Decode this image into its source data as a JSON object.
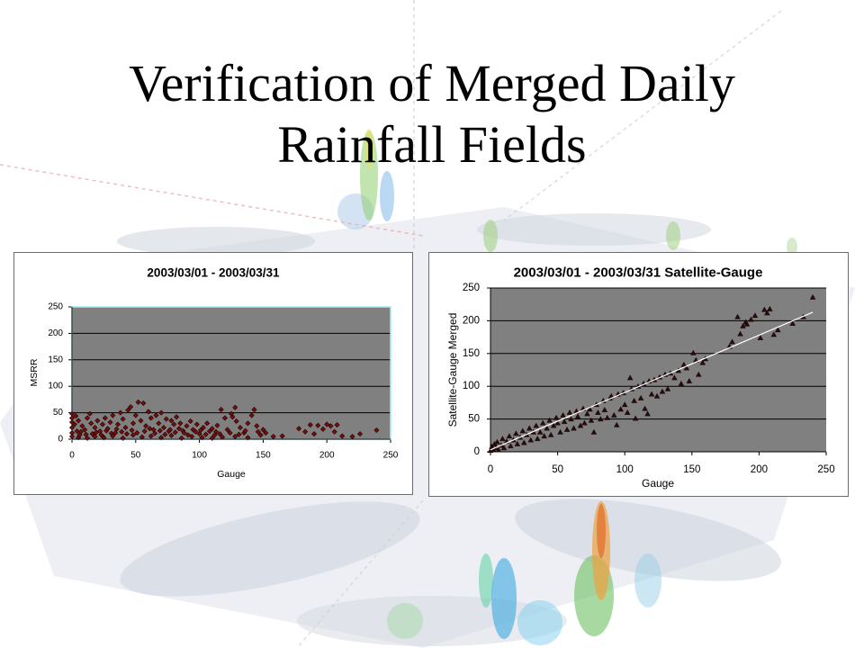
{
  "slide": {
    "title_line1": "Verification of Merged Daily",
    "title_line2": "Rainfall Fields"
  },
  "chart_data": [
    {
      "type": "scatter",
      "title": "2003/03/01 - 2003/03/31",
      "xlabel": "Gauge",
      "ylabel": "MSRR",
      "xlim": [
        0,
        250
      ],
      "ylim": [
        0,
        250
      ],
      "xticks": [
        0,
        50,
        100,
        150,
        200,
        250
      ],
      "yticks": [
        0,
        50,
        100,
        150,
        200,
        250
      ],
      "grid": true,
      "marker": "diamond",
      "marker_color": "#7b0c0c",
      "plot_bg": "#808080",
      "plot_border": "#a6eef0",
      "points": [
        [
          0,
          48
        ],
        [
          0,
          40
        ],
        [
          0,
          32
        ],
        [
          0,
          22
        ],
        [
          0,
          12
        ],
        [
          0,
          5
        ],
        [
          2,
          28
        ],
        [
          3,
          44
        ],
        [
          4,
          15
        ],
        [
          5,
          35
        ],
        [
          5,
          3
        ],
        [
          6,
          8
        ],
        [
          7,
          14
        ],
        [
          8,
          25
        ],
        [
          10,
          18
        ],
        [
          11,
          9
        ],
        [
          12,
          40
        ],
        [
          12,
          2
        ],
        [
          14,
          48
        ],
        [
          15,
          30
        ],
        [
          16,
          10
        ],
        [
          18,
          22
        ],
        [
          18,
          5
        ],
        [
          19,
          13
        ],
        [
          20,
          35
        ],
        [
          22,
          15
        ],
        [
          23,
          8
        ],
        [
          24,
          28
        ],
        [
          25,
          3
        ],
        [
          26,
          40
        ],
        [
          27,
          16
        ],
        [
          28,
          20
        ],
        [
          30,
          32
        ],
        [
          31,
          11
        ],
        [
          32,
          45
        ],
        [
          32,
          6
        ],
        [
          34,
          12
        ],
        [
          35,
          19
        ],
        [
          36,
          28
        ],
        [
          38,
          50
        ],
        [
          39,
          14
        ],
        [
          40,
          38
        ],
        [
          40,
          2
        ],
        [
          42,
          22
        ],
        [
          43,
          10
        ],
        [
          44,
          55
        ],
        [
          46,
          61
        ],
        [
          47,
          17
        ],
        [
          48,
          30
        ],
        [
          48,
          8
        ],
        [
          50,
          45
        ],
        [
          51,
          12
        ],
        [
          52,
          70
        ],
        [
          54,
          35
        ],
        [
          55,
          4
        ],
        [
          56,
          68
        ],
        [
          57,
          15
        ],
        [
          58,
          25
        ],
        [
          60,
          52
        ],
        [
          61,
          20
        ],
        [
          62,
          40
        ],
        [
          62,
          6
        ],
        [
          64,
          18
        ],
        [
          65,
          11
        ],
        [
          66,
          45
        ],
        [
          68,
          30
        ],
        [
          69,
          16
        ],
        [
          70,
          50
        ],
        [
          70,
          3
        ],
        [
          72,
          22
        ],
        [
          73,
          9
        ],
        [
          74,
          38
        ],
        [
          76,
          15
        ],
        [
          77,
          18
        ],
        [
          78,
          35
        ],
        [
          78,
          7
        ],
        [
          80,
          28
        ],
        [
          81,
          13
        ],
        [
          82,
          42
        ],
        [
          84,
          20
        ],
        [
          85,
          30
        ],
        [
          86,
          2
        ],
        [
          87,
          16
        ],
        [
          88,
          12
        ],
        [
          90,
          25
        ],
        [
          91,
          8
        ],
        [
          93,
          34
        ],
        [
          94,
          5
        ],
        [
          95,
          18
        ],
        [
          97,
          14
        ],
        [
          98,
          28
        ],
        [
          100,
          10
        ],
        [
          101,
          17
        ],
        [
          102,
          3
        ],
        [
          103,
          22
        ],
        [
          105,
          9
        ],
        [
          106,
          30
        ],
        [
          108,
          15
        ],
        [
          110,
          20
        ],
        [
          110,
          2
        ],
        [
          112,
          8
        ],
        [
          113,
          14
        ],
        [
          114,
          26
        ],
        [
          116,
          10
        ],
        [
          117,
          56
        ],
        [
          118,
          4
        ],
        [
          120,
          40
        ],
        [
          122,
          18
        ],
        [
          124,
          12
        ],
        [
          125,
          48
        ],
        [
          126,
          42
        ],
        [
          128,
          60
        ],
        [
          128,
          5
        ],
        [
          129,
          34
        ],
        [
          131,
          9
        ],
        [
          132,
          22
        ],
        [
          135,
          12
        ],
        [
          136,
          16
        ],
        [
          138,
          30
        ],
        [
          138,
          3
        ],
        [
          141,
          45
        ],
        [
          143,
          56
        ],
        [
          145,
          25
        ],
        [
          146,
          14
        ],
        [
          148,
          8
        ],
        [
          150,
          18
        ],
        [
          152,
          12
        ],
        [
          158,
          5
        ],
        [
          165,
          6
        ],
        [
          178,
          20
        ],
        [
          183,
          14
        ],
        [
          187,
          27
        ],
        [
          190,
          10
        ],
        [
          193,
          26
        ],
        [
          197,
          19
        ],
        [
          200,
          28
        ],
        [
          203,
          25
        ],
        [
          206,
          14
        ],
        [
          208,
          27
        ],
        [
          212,
          6
        ],
        [
          220,
          5
        ],
        [
          226,
          10
        ],
        [
          239,
          17
        ]
      ]
    },
    {
      "type": "scatter",
      "title": "2003/03/01 - 2003/03/31 Satellite-Gauge",
      "xlabel": "Gauge",
      "ylabel": "Satellite-Gauge Merged",
      "xlim": [
        0,
        250
      ],
      "ylim": [
        0,
        250
      ],
      "xticks": [
        0,
        50,
        100,
        150,
        200,
        250
      ],
      "yticks": [
        0,
        50,
        100,
        150,
        200,
        250
      ],
      "grid": true,
      "marker": "triangle",
      "marker_color": "#2a0a0a",
      "plot_bg": "#808080",
      "trendline": {
        "x": [
          0,
          240
        ],
        "y": [
          3,
          213
        ],
        "color": "#ffffff"
      },
      "points": [
        [
          0,
          2
        ],
        [
          1,
          8
        ],
        [
          2,
          4
        ],
        [
          3,
          12
        ],
        [
          4,
          6
        ],
        [
          5,
          15
        ],
        [
          6,
          3
        ],
        [
          8,
          10
        ],
        [
          9,
          20
        ],
        [
          10,
          6
        ],
        [
          12,
          16
        ],
        [
          14,
          24
        ],
        [
          15,
          9
        ],
        [
          17,
          18
        ],
        [
          19,
          28
        ],
        [
          20,
          12
        ],
        [
          22,
          22
        ],
        [
          24,
          32
        ],
        [
          25,
          14
        ],
        [
          27,
          26
        ],
        [
          29,
          36
        ],
        [
          30,
          18
        ],
        [
          32,
          30
        ],
        [
          34,
          40
        ],
        [
          35,
          20
        ],
        [
          37,
          30
        ],
        [
          39,
          44
        ],
        [
          40,
          24
        ],
        [
          42,
          36
        ],
        [
          44,
          48
        ],
        [
          45,
          26
        ],
        [
          47,
          40
        ],
        [
          49,
          52
        ],
        [
          50,
          44
        ],
        [
          52,
          30
        ],
        [
          54,
          56
        ],
        [
          55,
          46
        ],
        [
          57,
          34
        ],
        [
          59,
          60
        ],
        [
          60,
          50
        ],
        [
          62,
          36
        ],
        [
          64,
          62
        ],
        [
          65,
          54
        ],
        [
          67,
          40
        ],
        [
          69,
          66
        ],
        [
          70,
          44
        ],
        [
          72,
          58
        ],
        [
          74,
          65
        ],
        [
          75,
          48
        ],
        [
          77,
          30
        ],
        [
          79,
          72
        ],
        [
          80,
          60
        ],
        [
          82,
          50
        ],
        [
          84,
          78
        ],
        [
          85,
          64
        ],
        [
          87,
          52
        ],
        [
          89,
          82
        ],
        [
          90,
          85
        ],
        [
          92,
          56
        ],
        [
          94,
          41
        ],
        [
          95,
          88
        ],
        [
          97,
          65
        ],
        [
          99,
          90
        ],
        [
          100,
          72
        ],
        [
          102,
          60
        ],
        [
          104,
          113
        ],
        [
          105,
          96
        ],
        [
          107,
          78
        ],
        [
          108,
          51
        ],
        [
          110,
          100
        ],
        [
          112,
          82
        ],
        [
          114,
          104
        ],
        [
          115,
          66
        ],
        [
          117,
          58
        ],
        [
          118,
          108
        ],
        [
          120,
          88
        ],
        [
          122,
          110
        ],
        [
          124,
          85
        ],
        [
          126,
          114
        ],
        [
          128,
          92
        ],
        [
          130,
          118
        ],
        [
          132,
          96
        ],
        [
          134,
          120
        ],
        [
          137,
          113
        ],
        [
          140,
          124
        ],
        [
          142,
          104
        ],
        [
          144,
          133
        ],
        [
          146,
          128
        ],
        [
          148,
          108
        ],
        [
          151,
          151
        ],
        [
          153,
          140
        ],
        [
          155,
          118
        ],
        [
          158,
          136
        ],
        [
          160,
          142
        ],
        [
          178,
          161
        ],
        [
          180,
          168
        ],
        [
          184,
          206
        ],
        [
          186,
          180
        ],
        [
          188,
          192
        ],
        [
          190,
          198
        ],
        [
          191,
          195
        ],
        [
          194,
          202
        ],
        [
          197,
          208
        ],
        [
          201,
          174
        ],
        [
          204,
          217
        ],
        [
          206,
          212
        ],
        [
          208,
          218
        ],
        [
          211,
          179
        ],
        [
          214,
          186
        ],
        [
          225,
          196
        ],
        [
          233,
          206
        ],
        [
          240,
          236
        ]
      ]
    }
  ]
}
